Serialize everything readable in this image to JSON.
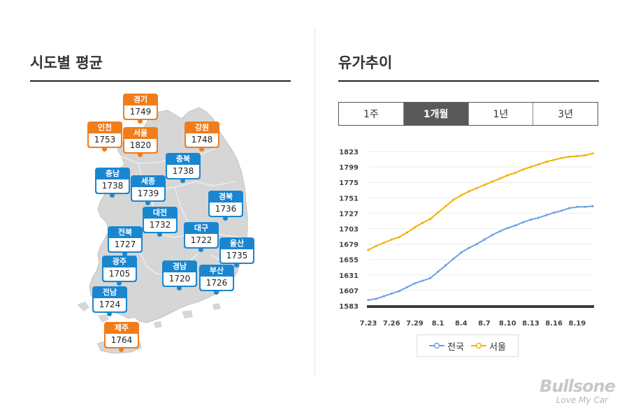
{
  "left_title": "시도별 평균",
  "right_title": "유가추이",
  "regions": [
    {
      "name": "경기",
      "value": "1749",
      "color": "orange"
    },
    {
      "name": "인천",
      "value": "1753",
      "color": "orange"
    },
    {
      "name": "서울",
      "value": "1820",
      "color": "orange"
    },
    {
      "name": "강원",
      "value": "1748",
      "color": "orange"
    },
    {
      "name": "충북",
      "value": "1738",
      "color": "blue"
    },
    {
      "name": "충남",
      "value": "1738",
      "color": "blue"
    },
    {
      "name": "세종",
      "value": "1739",
      "color": "blue"
    },
    {
      "name": "경북",
      "value": "1736",
      "color": "blue"
    },
    {
      "name": "대전",
      "value": "1732",
      "color": "blue"
    },
    {
      "name": "전북",
      "value": "1727",
      "color": "blue"
    },
    {
      "name": "대구",
      "value": "1722",
      "color": "blue"
    },
    {
      "name": "울산",
      "value": "1735",
      "color": "blue"
    },
    {
      "name": "광주",
      "value": "1705",
      "color": "blue"
    },
    {
      "name": "경남",
      "value": "1720",
      "color": "blue"
    },
    {
      "name": "부산",
      "value": "1726",
      "color": "blue"
    },
    {
      "name": "전남",
      "value": "1724",
      "color": "blue"
    },
    {
      "name": "제주",
      "value": "1764",
      "color": "orange"
    }
  ],
  "tabs": [
    {
      "label": "1주",
      "active": false
    },
    {
      "label": "1개월",
      "active": true
    },
    {
      "label": "1년",
      "active": false
    },
    {
      "label": "3년",
      "active": false
    }
  ],
  "chart_data": {
    "type": "line",
    "title": "유가추이",
    "x": [
      "7.23",
      "7.24",
      "7.25",
      "7.26",
      "7.27",
      "7.28",
      "7.29",
      "7.30",
      "7.31",
      "8.1",
      "8.2",
      "8.3",
      "8.4",
      "8.5",
      "8.6",
      "8.7",
      "8.8",
      "8.9",
      "8.10",
      "8.11",
      "8.12",
      "8.13",
      "8.14",
      "8.15",
      "8.16",
      "8.17",
      "8.18",
      "8.19",
      "8.20",
      "8.21"
    ],
    "xticks": [
      "7.23",
      "7.26",
      "7.29",
      "8.1",
      "8.4",
      "8.7",
      "8.10",
      "8.13",
      "8.16",
      "8.19"
    ],
    "yticks": [
      1583,
      1607,
      1631,
      1655,
      1679,
      1703,
      1727,
      1751,
      1775,
      1799,
      1823
    ],
    "ylim": [
      1583,
      1823
    ],
    "series": [
      {
        "name": "전국",
        "color": "#6fa0e6",
        "values": [
          1592,
          1594,
          1598,
          1602,
          1606,
          1612,
          1618,
          1622,
          1626,
          1636,
          1646,
          1656,
          1666,
          1673,
          1679,
          1686,
          1693,
          1699,
          1704,
          1708,
          1713,
          1717,
          1720,
          1724,
          1728,
          1731,
          1735,
          1737,
          1737,
          1738
        ]
      },
      {
        "name": "서울",
        "color": "#f0b400",
        "values": [
          1670,
          1676,
          1681,
          1686,
          1690,
          1697,
          1705,
          1712,
          1718,
          1728,
          1738,
          1748,
          1755,
          1761,
          1766,
          1771,
          1776,
          1781,
          1786,
          1790,
          1795,
          1799,
          1803,
          1807,
          1810,
          1813,
          1815,
          1816,
          1817,
          1820
        ]
      }
    ]
  },
  "logo": {
    "name": "Bullsone",
    "tagline": "Love My Car"
  }
}
